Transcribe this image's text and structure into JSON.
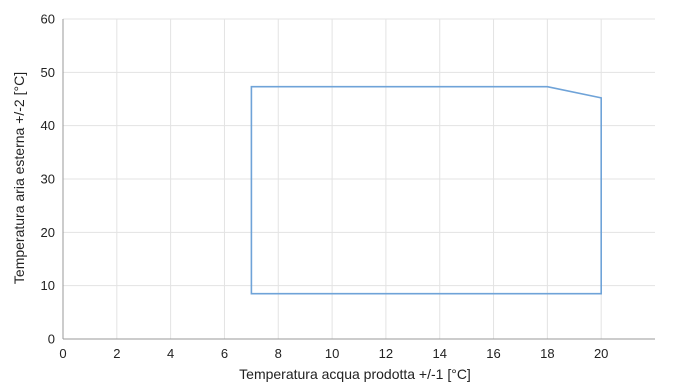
{
  "chart_data": {
    "type": "line",
    "title": "",
    "xlabel": "Temperatura acqua prodotta +/-1 [°C]",
    "ylabel": "Temperatura aria esterna +/-2 [°C]",
    "xlim": [
      0,
      22
    ],
    "ylim": [
      0,
      60
    ],
    "x_ticks": [
      0,
      2,
      4,
      6,
      8,
      10,
      12,
      14,
      16,
      18,
      20
    ],
    "y_ticks": [
      0,
      10,
      20,
      30,
      40,
      50,
      60
    ],
    "grid": true,
    "legend": "none",
    "series": [
      {
        "color": "#6fa3d8",
        "closed": true,
        "points": [
          {
            "x": 7,
            "y": 8.5
          },
          {
            "x": 7,
            "y": 47.3
          },
          {
            "x": 18,
            "y": 47.3
          },
          {
            "x": 20,
            "y": 45.2
          },
          {
            "x": 20,
            "y": 8.5
          }
        ]
      }
    ]
  },
  "colors": {
    "grid": "#e3e3e3",
    "axis": "#9a9a9a",
    "text": "#222222"
  }
}
